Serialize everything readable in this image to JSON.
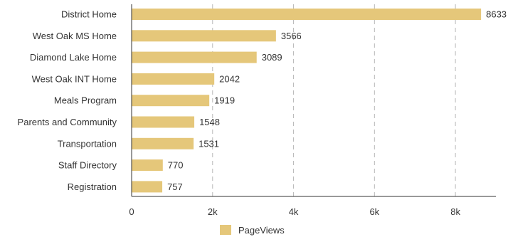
{
  "chart_data": {
    "type": "bar",
    "orientation": "horizontal",
    "categories": [
      "District Home",
      "West Oak MS Home",
      "Diamond Lake Home",
      "West Oak INT Home",
      "Meals Program",
      "Parents and Community",
      "Transportation",
      "Staff Directory",
      "Registration"
    ],
    "series": [
      {
        "name": "PageViews",
        "values": [
          8633,
          3566,
          3089,
          2042,
          1919,
          1548,
          1531,
          770,
          757
        ],
        "color": "#e5c77a"
      }
    ],
    "xlim": [
      0,
      9000
    ],
    "xticks": [
      0,
      2000,
      4000,
      6000,
      8000
    ],
    "xtick_labels": [
      "0",
      "2k",
      "4k",
      "6k",
      "8k"
    ],
    "grid": "vertical-dashed",
    "legend_position": "bottom-center",
    "title": "",
    "xlabel": "",
    "ylabel": ""
  },
  "colors": {
    "bar": "#e5c77a",
    "grid": "#b8b8b8",
    "axis": "#333333",
    "text": "#333333"
  }
}
